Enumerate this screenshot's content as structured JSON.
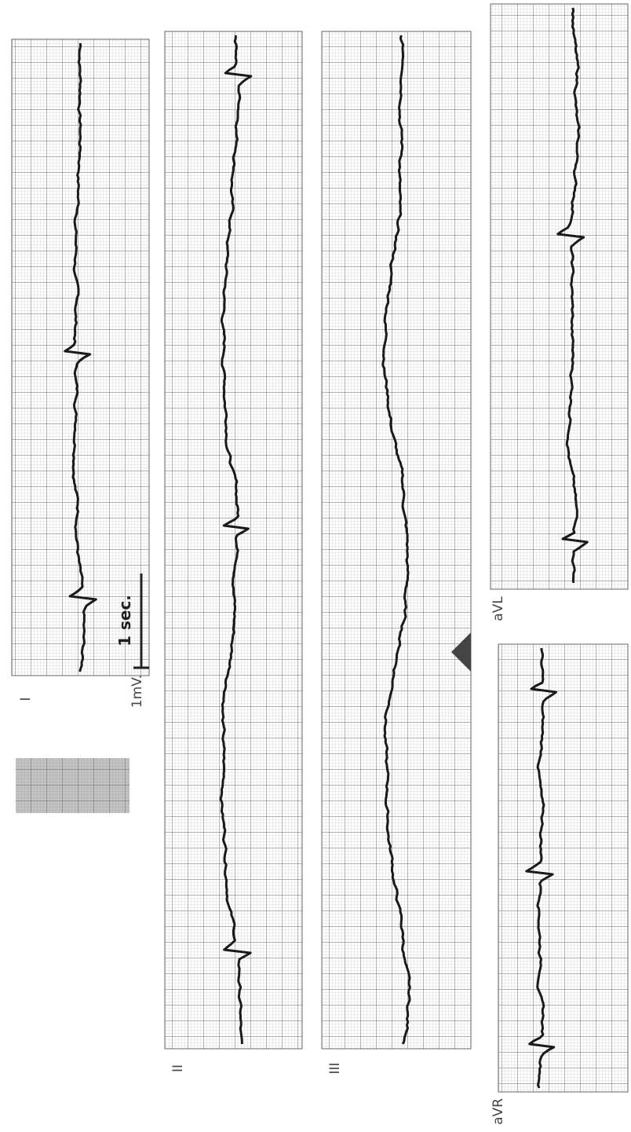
{
  "labels": {
    "lead_1": "I",
    "lead_2": "II",
    "lead_3": "III",
    "lead_avl": "aVL",
    "lead_avr": "aVR",
    "time_scale": "1 sec.",
    "voltage_scale": "1mV."
  }
}
